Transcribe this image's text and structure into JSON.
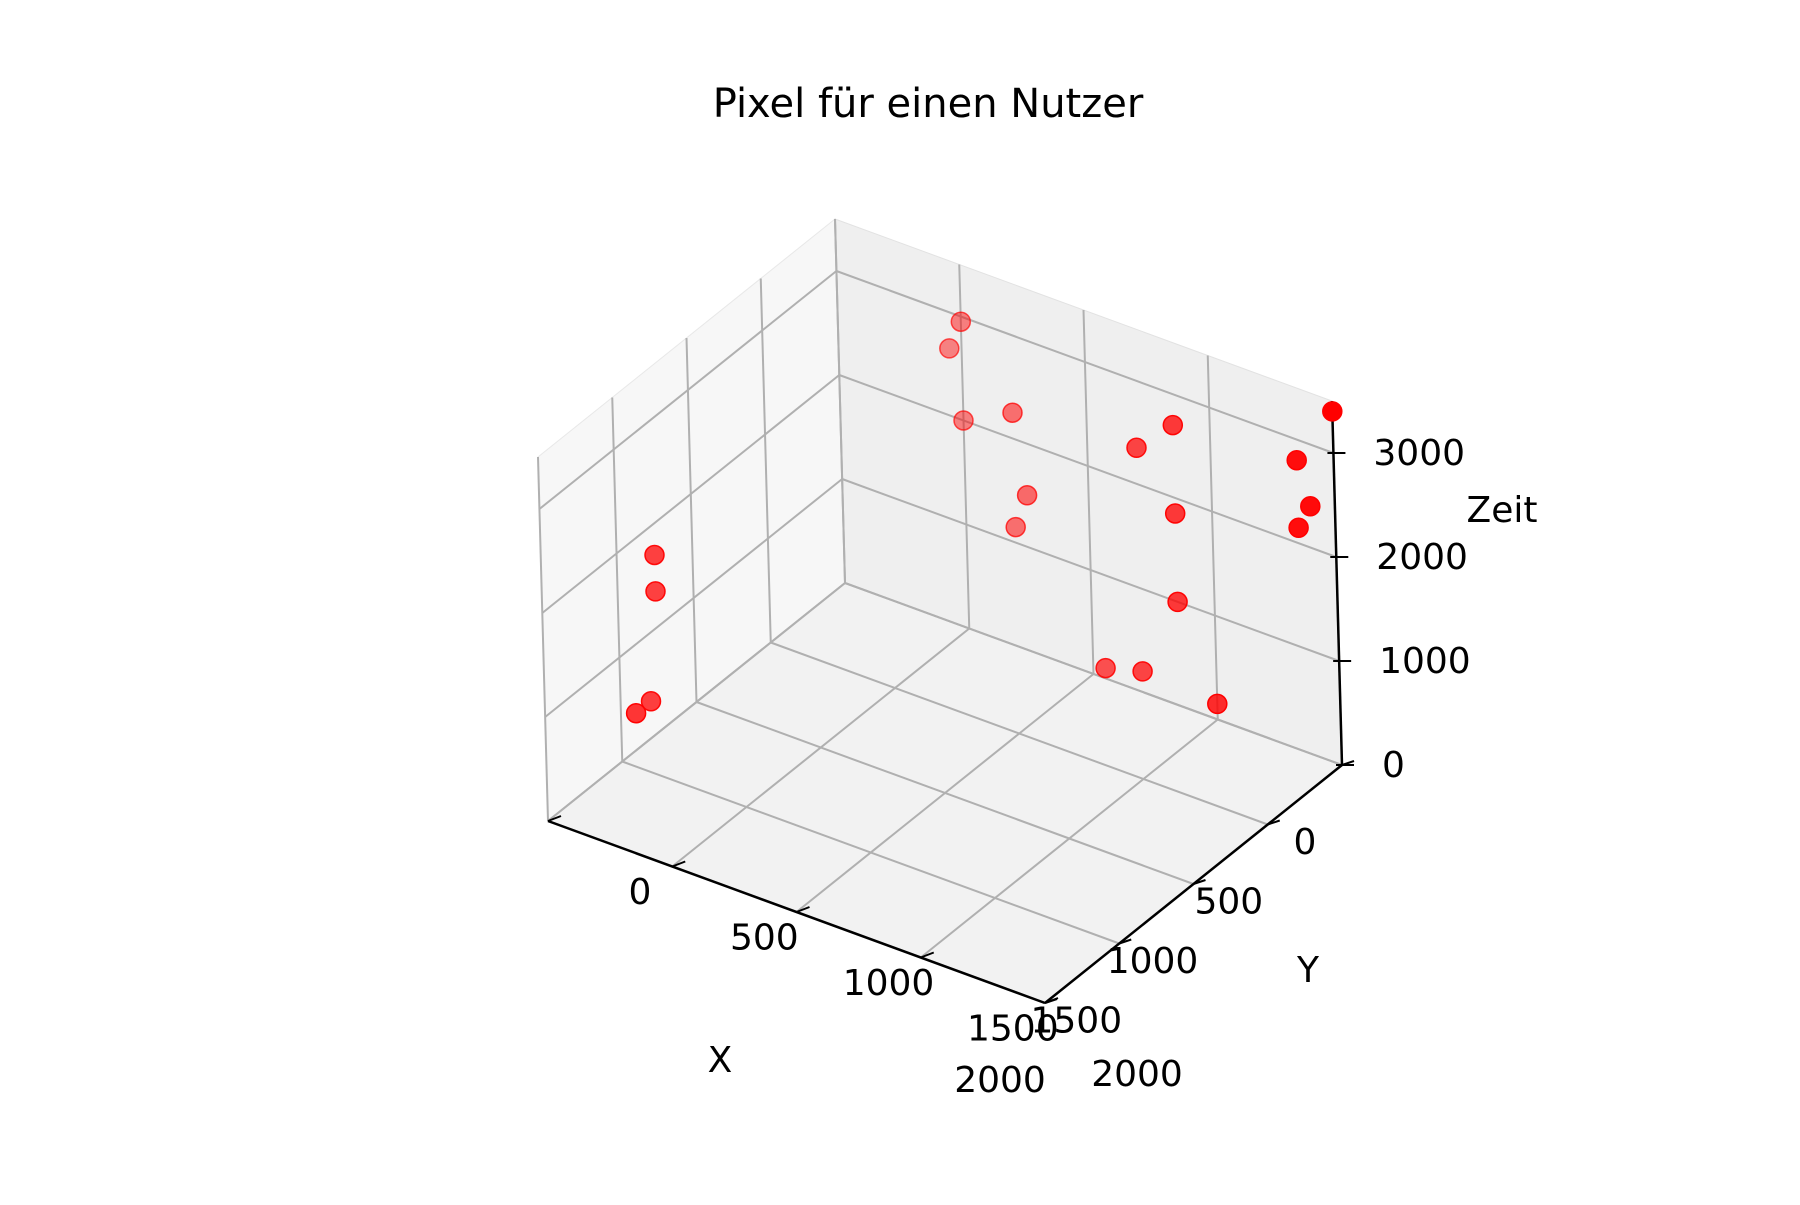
{
  "chart_data": {
    "type": "scatter",
    "projection": "3d",
    "title": "Pixel für einen Nutzer",
    "xlabel": "X",
    "ylabel": "Y",
    "zlabel": "Zeit",
    "xlim": [
      0,
      2000
    ],
    "ylim": [
      0,
      2000
    ],
    "zlim": [
      0,
      3500
    ],
    "xticks": [
      0,
      500,
      1000,
      1500,
      2000
    ],
    "yticks": [
      0,
      500,
      1000,
      1500,
      2000
    ],
    "zticks": [
      0,
      1000,
      2000,
      3000
    ],
    "grid": true,
    "marker_color": "#ff0000",
    "points": [
      {
        "x": 0,
        "y": 2000,
        "z": 3400
      },
      {
        "x": 0,
        "y": 1850,
        "z": 2800
      },
      {
        "x": 0,
        "y": 1900,
        "z": 2400
      },
      {
        "x": 0,
        "y": 1850,
        "z": 2150
      },
      {
        "x": 0,
        "y": 1350,
        "z": 2700
      },
      {
        "x": 0,
        "y": 1200,
        "z": 2350
      },
      {
        "x": 0,
        "y": 500,
        "z": 2950
      },
      {
        "x": 0,
        "y": 450,
        "z": 2650
      },
      {
        "x": 0,
        "y": 700,
        "z": 2250
      },
      {
        "x": 0,
        "y": 500,
        "z": 2000
      },
      {
        "x": 0,
        "y": 750,
        "z": 1500
      },
      {
        "x": 0,
        "y": 700,
        "z": 1150
      },
      {
        "x": 0,
        "y": 1350,
        "z": 1850
      },
      {
        "x": 0,
        "y": 1350,
        "z": 1000
      },
      {
        "x": 0,
        "y": 1500,
        "z": 150
      },
      {
        "x": 0,
        "y": 1200,
        "z": 200
      },
      {
        "x": 0,
        "y": 1050,
        "z": 100
      },
      {
        "x": 1250,
        "y": 0,
        "z": 1700
      },
      {
        "x": 1250,
        "y": 0,
        "z": 1350
      },
      {
        "x": 1400,
        "y": 0,
        "z": 350
      },
      {
        "x": 1300,
        "y": 0,
        "z": 350
      }
    ]
  }
}
